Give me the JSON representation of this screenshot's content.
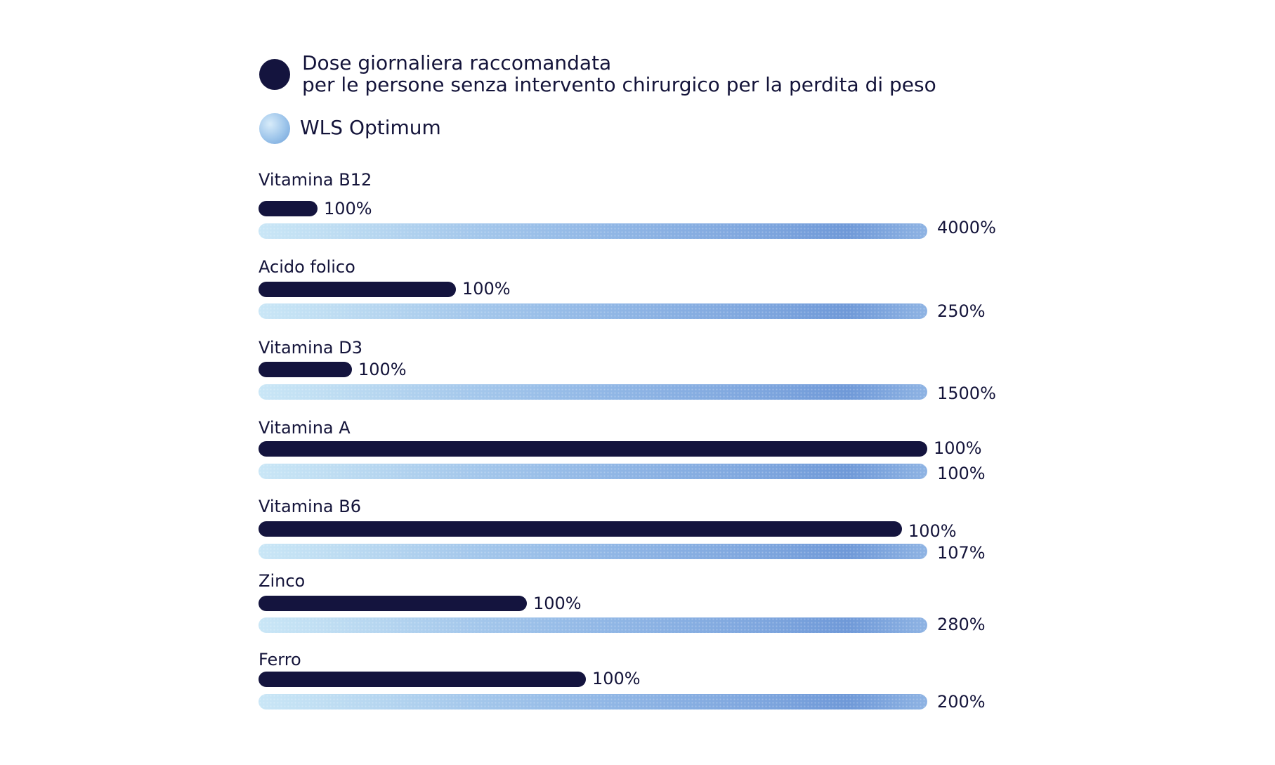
{
  "chart_data": {
    "type": "bar",
    "orientation": "horizontal",
    "legend": [
      {
        "name_line1": "Dose giornaliera raccomandata",
        "name_line2": "per le persone senza intervento chirurgico per la perdita di peso",
        "color": "#14143e"
      },
      {
        "name": "WLS Optimum",
        "color": "#8eb3e3"
      }
    ],
    "categories": [
      "Vitamina B12",
      "Acido folico",
      "Vitamina D3",
      "Vitamina A",
      "Vitamina B6",
      "Zinco",
      "Ferro"
    ],
    "series": [
      {
        "key": "dose",
        "values": [
          100,
          100,
          100,
          100,
          100,
          100,
          100
        ],
        "labels": [
          "100%",
          "100%",
          "100%",
          "100%",
          "100%",
          "100%",
          "100%"
        ]
      },
      {
        "key": "wls",
        "values": [
          4000,
          250,
          1500,
          100,
          107,
          280,
          200
        ],
        "labels": [
          "4000%",
          "250%",
          "1500%",
          "100%",
          "107%",
          "280%",
          "200%"
        ]
      }
    ],
    "legend_position": "top-left",
    "grid": false
  }
}
